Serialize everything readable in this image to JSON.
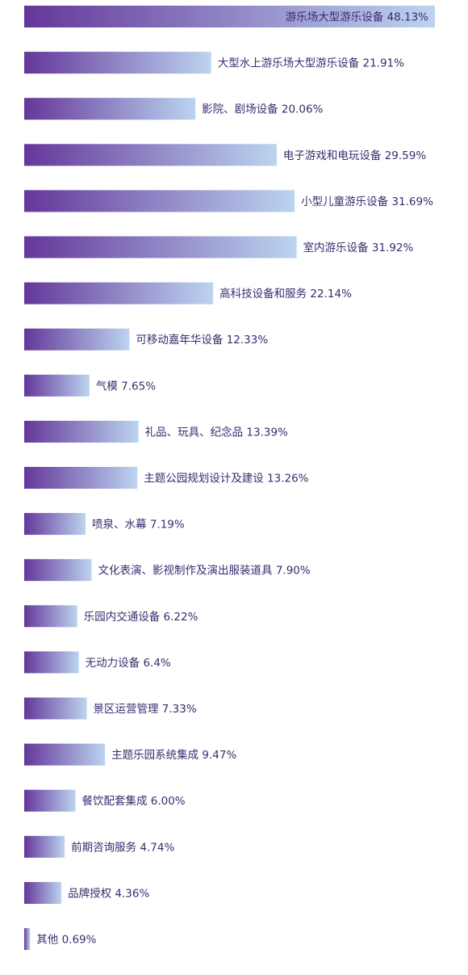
{
  "chart_data": {
    "type": "bar",
    "orientation": "horizontal",
    "title": "",
    "xlabel": "",
    "ylabel": "",
    "xlim": [
      0,
      48.13
    ],
    "grid": false,
    "legend": "none",
    "colors": {
      "bar_start": "#64379a",
      "bar_end": "#bcd4f0",
      "label_text": "#3b2a6e"
    },
    "categories": [
      "游乐场大型游乐设备",
      "大型水上游乐场大型游乐设备",
      "影院、剧场设备",
      "电子游戏和电玩设备",
      "小型儿童游乐设备",
      "室内游乐设备",
      "高科技设备和服务",
      "可移动嘉年华设备",
      "气模",
      "礼品、玩具、纪念品",
      "主题公园规划设计及建设",
      "喷泉、水幕",
      "文化表演、影视制作及演出服装道具",
      "乐园内交通设备",
      "无动力设备",
      "景区运营管理",
      "主题乐园系统集成",
      "餐饮配套集成",
      "前期咨询服务",
      "品牌授权",
      "其他"
    ],
    "values": [
      48.13,
      21.91,
      20.06,
      29.59,
      31.69,
      31.92,
      22.14,
      12.33,
      7.65,
      13.39,
      13.26,
      7.19,
      7.9,
      6.22,
      6.4,
      7.33,
      9.47,
      6.0,
      4.74,
      4.36,
      0.69
    ],
    "labels": [
      "游乐场大型游乐设备 48.13%",
      "大型水上游乐场大型游乐设备 21.91%",
      "影院、剧场设备 20.06%",
      "电子游戏和电玩设备 29.59%",
      "小型儿童游乐设备 31.69%",
      "室内游乐设备 31.92%",
      "高科技设备和服务 22.14%",
      "可移动嘉年华设备 12.33%",
      "气模 7.65%",
      "礼品、玩具、纪念品 13.39%",
      "主题公园规划设计及建设 13.26%",
      "喷泉、水幕 7.19%",
      "文化表演、影视制作及演出服装道具 7.90%",
      "乐园内交通设备 6.22%",
      "无动力设备 6.4%",
      "景区运营管理 7.33%",
      "主题乐园系统集成 9.47%",
      "餐饮配套集成 6.00%",
      "前期咨询服务 4.74%",
      "品牌授权 4.36%",
      "其他 0.69%"
    ]
  }
}
